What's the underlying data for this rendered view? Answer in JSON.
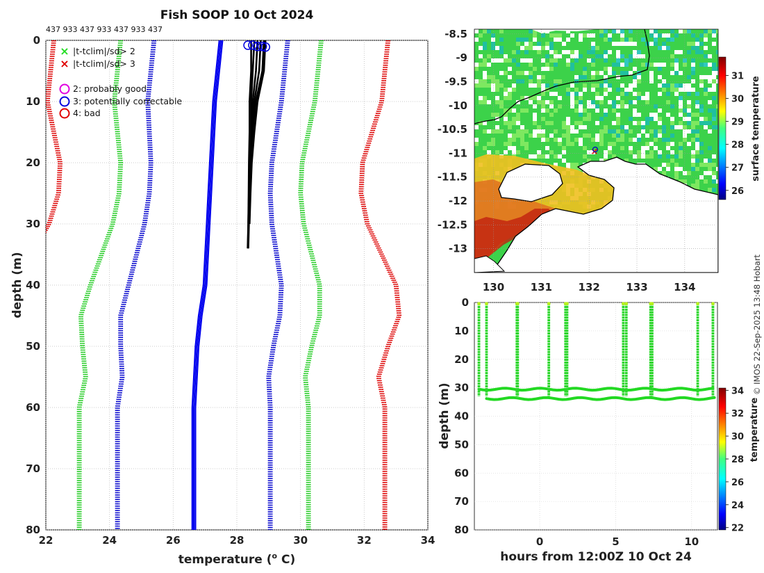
{
  "chart_data": [
    {
      "name": "temperature-depth-profile",
      "type": "line",
      "title": "Fish SOOP 10 Oct 2024",
      "subtitle": "437 933 437 933 437 933 437",
      "xlabel": "temperature (°C)",
      "ylabel": "depth (m)",
      "xlim": [
        22,
        34
      ],
      "ylim": [
        80,
        0
      ],
      "xticks": [
        "22",
        "24",
        "26",
        "28",
        "30",
        "32",
        "34"
      ],
      "yticks": [
        "0",
        "10",
        "20",
        "30",
        "40",
        "50",
        "60",
        "70",
        "80"
      ],
      "grid": true,
      "legend": {
        "items": [
          {
            "label": "|t-tclim|/sd> 2",
            "marker": "x",
            "color": "#22dd22"
          },
          {
            "label": "|t-tclim|/sd> 3",
            "marker": "x",
            "color": "#e00000"
          },
          {
            "label": "2: probably good",
            "marker": "o",
            "color": "#e000e0"
          },
          {
            "label": "3: potentially correctable",
            "marker": "o",
            "color": "#0000dd"
          },
          {
            "label": "4: bad",
            "marker": "o",
            "color": "#e00000"
          }
        ]
      },
      "climatology": {
        "depths": [
          0,
          5,
          10,
          15,
          20,
          25,
          30,
          35,
          40,
          45,
          50,
          55,
          60,
          65,
          70,
          75,
          80
        ],
        "mean": [
          27.5,
          27.4,
          27.3,
          27.25,
          27.2,
          27.15,
          27.1,
          27.05,
          27.0,
          26.85,
          26.75,
          26.7,
          26.65,
          26.65,
          26.65,
          26.65,
          26.65
        ],
        "sd": [
          1.05,
          1.05,
          1.05,
          1.0,
          0.95,
          0.95,
          1.0,
          1.1,
          1.2,
          1.25,
          1.2,
          1.15,
          1.2,
          1.2,
          1.2,
          1.2,
          1.2
        ],
        "series": [
          {
            "name": "mean",
            "k": 0,
            "color": "#0000ee"
          },
          {
            "name": "mean ± 2 sd",
            "k": 2,
            "color": "#0000cc",
            "style": "dotted"
          },
          {
            "name": "mean ± 3 sd",
            "k": 3,
            "color": "#22cc22",
            "style": "dotted"
          },
          {
            "name": "mean ± 5 sd",
            "k": 5,
            "color": "#dd0000",
            "style": "dotted"
          }
        ]
      },
      "profiles": {
        "color": "#000000",
        "depths": [
          0,
          5,
          10,
          15,
          20,
          25,
          30,
          34
        ],
        "series": [
          [
            28.45,
            28.45,
            28.4,
            28.4,
            28.38,
            28.37,
            28.36,
            28.35
          ],
          [
            28.55,
            28.5,
            28.45,
            28.42,
            28.4,
            28.38,
            28.36,
            28.34
          ],
          [
            28.65,
            28.6,
            28.5,
            28.45,
            28.42,
            28.4,
            28.38,
            28.36
          ],
          [
            28.75,
            28.7,
            28.55,
            28.48,
            28.43,
            28.41,
            28.38
          ],
          [
            28.85,
            28.8,
            28.6,
            28.5,
            28.45,
            28.42,
            28.39
          ],
          [
            28.9,
            28.85,
            28.65,
            28.55,
            28.47,
            28.43,
            28.4
          ]
        ],
        "flag_circles": [
          {
            "x": 28.35,
            "depth": 0.8
          },
          {
            "x": 28.5,
            "depth": 0.8
          },
          {
            "x": 28.65,
            "depth": 1.0
          },
          {
            "x": 28.8,
            "depth": 1.0
          },
          {
            "x": 28.9,
            "depth": 1.1
          }
        ]
      }
    },
    {
      "name": "surface-temperature-map",
      "type": "heatmap",
      "xlim": [
        129.6,
        134.7
      ],
      "ylim": [
        -13.5,
        -8.4
      ],
      "xticks": [
        "130",
        "131",
        "132",
        "133",
        "134"
      ],
      "yticks": [
        "-8.5",
        "-9",
        "-9.5",
        "-10",
        "-10.5",
        "-11",
        "-11.5",
        "-12",
        "-12.5",
        "-13"
      ],
      "colorbar": {
        "label": "surface temperature",
        "min": 25.6,
        "max": 31.8,
        "ticks": [
          "26",
          "27",
          "28",
          "29",
          "30",
          "31"
        ]
      },
      "grid": true
    },
    {
      "name": "depth-time-section",
      "type": "scatter",
      "xlabel": "hours from 12:00Z 10 Oct 24",
      "ylabel": "depth (m)",
      "xlim": [
        -4.3,
        11.7
      ],
      "ylim": [
        80,
        0
      ],
      "xticks": [
        "0",
        "5",
        "10"
      ],
      "yticks": [
        "0",
        "10",
        "20",
        "30",
        "40",
        "50",
        "60",
        "70",
        "80"
      ],
      "colorbar": {
        "label": "temperature",
        "min": 21.8,
        "max": 34.2,
        "ticks": [
          "22",
          "24",
          "26",
          "28",
          "30",
          "32",
          "34"
        ]
      },
      "casts": [
        -4.0,
        -3.5,
        -1.5,
        -1.45,
        0.6,
        1.7,
        1.8,
        5.5,
        5.7,
        7.3,
        7.4,
        10.4,
        11.4
      ],
      "floors": [
        {
          "x0": -4.0,
          "x1": 11.4,
          "depth": 30.5
        },
        {
          "x0": -3.5,
          "x1": 11.5,
          "depth": 33.8
        }
      ]
    }
  ],
  "copyright": "© IMOS 22-Sep-2025 13:48 Hobart"
}
